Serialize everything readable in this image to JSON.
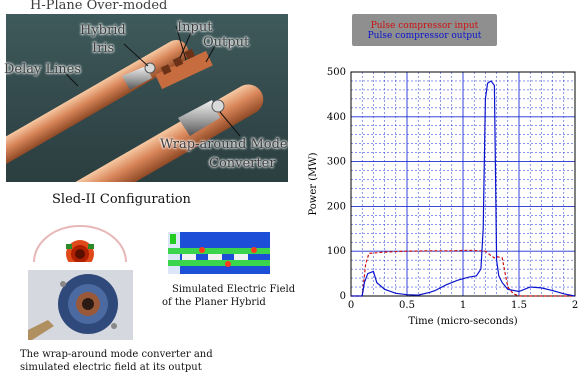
{
  "render_labels": {
    "hplane": "H-Plane Over-moded",
    "hybrid": "Hybrid",
    "iris": "Iris",
    "input": "Input",
    "output": "Output",
    "delay_lines": "Delay Lines",
    "wrap_mode_line1": "Wrap-around Mode",
    "wrap_mode_line2": "Converter"
  },
  "captions": {
    "sled": "Sled-II Configuration",
    "simulated_line1": "Simulated Electric Field",
    "simulated_line2": "of the Planer Hybrid",
    "wrap_line1": "The wrap-around mode converter and",
    "wrap_line2": "simulated electric field at its output"
  },
  "legend": {
    "input_label": "Pulse compressor input",
    "output_label": "Pulse compressor output"
  },
  "colors": {
    "input": "#cc1111",
    "output": "#0a14cc",
    "grid": "#1f2fd0",
    "copper": "#d9865a"
  },
  "chart_data": {
    "type": "line",
    "xlabel": "Time (micro-seconds)",
    "ylabel": "Power (MW)",
    "xlim": [
      0,
      2
    ],
    "ylim": [
      0,
      500
    ],
    "xticks": [
      0,
      0.5,
      1,
      1.5,
      2
    ],
    "yticks": [
      0,
      100,
      200,
      300,
      400,
      500
    ],
    "grid": true,
    "legend_position": "top",
    "series": [
      {
        "name": "Pulse compressor input",
        "color": "#cc1111",
        "style": "dashed",
        "x": [
          0,
          0.1,
          0.13,
          0.16,
          0.3,
          0.5,
          0.7,
          0.9,
          1.05,
          1.2,
          1.25,
          1.28,
          1.3,
          1.35,
          1.4,
          1.45,
          1.5,
          2.0
        ],
        "y": [
          0,
          0,
          70,
          95,
          98,
          100,
          101,
          101,
          102,
          100,
          90,
          85,
          88,
          85,
          20,
          5,
          0,
          0
        ]
      },
      {
        "name": "Pulse compressor output",
        "color": "#0a14cc",
        "style": "solid",
        "x": [
          0,
          0.1,
          0.12,
          0.15,
          0.2,
          0.23,
          0.3,
          0.4,
          0.5,
          0.6,
          0.7,
          0.75,
          0.85,
          0.95,
          1.05,
          1.12,
          1.16,
          1.18,
          1.2,
          1.22,
          1.25,
          1.28,
          1.3,
          1.32,
          1.35,
          1.4,
          1.5,
          1.6,
          1.7,
          1.8,
          1.9,
          2.0
        ],
        "y": [
          0,
          0,
          30,
          50,
          55,
          30,
          15,
          6,
          3,
          2,
          8,
          12,
          25,
          35,
          42,
          45,
          60,
          150,
          440,
          475,
          480,
          470,
          80,
          45,
          30,
          15,
          10,
          20,
          18,
          12,
          5,
          0
        ]
      }
    ]
  }
}
